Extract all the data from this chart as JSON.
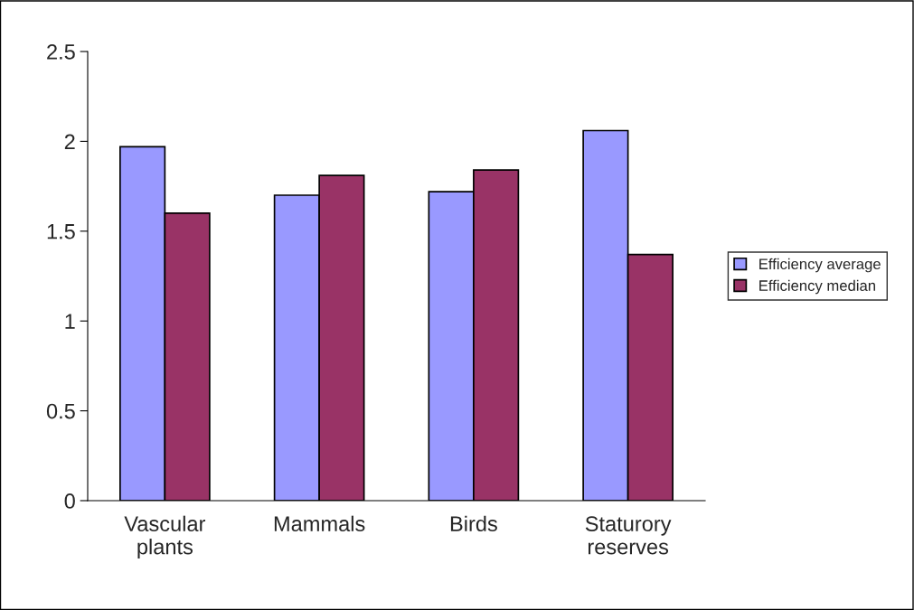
{
  "chart_data": {
    "type": "bar",
    "categories": [
      "Vascular\nplants",
      "Mammals",
      "Birds",
      "Staturory\nreserves"
    ],
    "series": [
      {
        "name": "Efficiency average",
        "color": "#9999ff",
        "values": [
          1.97,
          1.7,
          1.72,
          2.06
        ]
      },
      {
        "name": "Efficiency median",
        "color": "#993366",
        "values": [
          1.6,
          1.81,
          1.84,
          1.37
        ]
      }
    ],
    "ylim": [
      0,
      2.5
    ],
    "yticks": [
      0,
      0.5,
      1,
      1.5,
      2,
      2.5
    ],
    "grid": false,
    "legend": "right"
  }
}
